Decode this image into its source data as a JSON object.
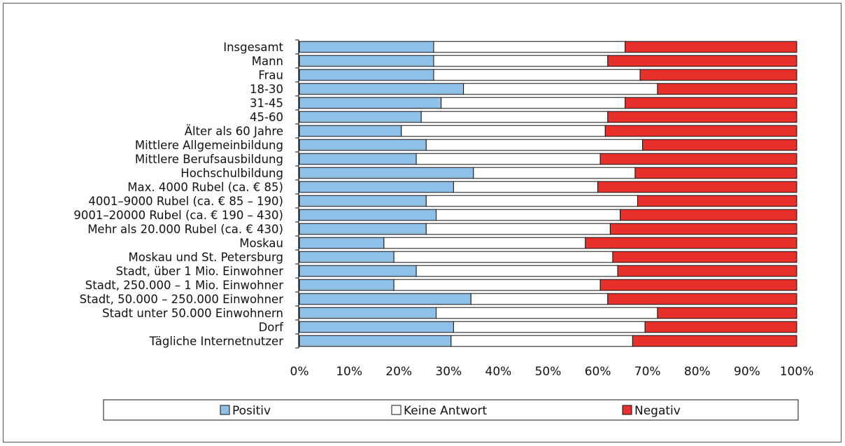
{
  "chart_data": {
    "type": "bar",
    "orientation": "horizontal",
    "stacked": "percent",
    "categories": [
      "Insgesamt",
      "Mann",
      "Frau",
      "18-30",
      "31-45",
      "45-60",
      "Älter als 60 Jahre",
      "Mittlere Allgemeinbildung",
      "Mittlere Berufsausbildung",
      "Hochschulbildung",
      "Max. 4000 Rubel (ca. € 85)",
      "4001–9000 Rubel (ca. € 85 – 190)",
      "9001–20000 Rubel (ca. € 190 – 430)",
      "Mehr als 20.000 Rubel (ca. € 430)",
      "Moskau",
      "Moskau und St. Petersburg",
      "Stadt, über 1 Mio. Einwohner",
      "Stadt, 250.000 – 1 Mio. Einwohner",
      "Stadt, 50.000 – 250.000 Einwohner",
      "Stadt unter 50.000 Einwohnern",
      "Dorf",
      "Tägliche Internetnutzer"
    ],
    "series": [
      {
        "name": "Positiv",
        "color": "#8fc0e8",
        "values": [
          27,
          27,
          27,
          33,
          28.5,
          24.5,
          20.5,
          25.5,
          23.5,
          35,
          31,
          25.5,
          27.5,
          25.5,
          17,
          19,
          23.5,
          19,
          34.5,
          27.5,
          31,
          30.5
        ]
      },
      {
        "name": "Keine Antwort",
        "color": "#ffffff",
        "values": [
          38.5,
          35,
          41.5,
          39,
          37,
          37.5,
          41,
          43.5,
          37,
          32.5,
          29,
          42.5,
          37,
          37,
          40.5,
          44,
          40.5,
          41.5,
          27.5,
          44.5,
          38.5,
          36.5
        ]
      },
      {
        "name": "Negativ",
        "color": "#e8302d",
        "values": [
          34.5,
          38,
          31.5,
          28,
          34.5,
          38,
          38.5,
          31,
          39.5,
          32.5,
          40,
          32,
          35.5,
          37.5,
          42.5,
          37,
          36,
          39.5,
          38,
          28,
          30.5,
          33
        ]
      }
    ],
    "xlim": [
      0,
      100
    ],
    "xticks": [
      "0%",
      "10%",
      "20%",
      "30%",
      "40%",
      "50%",
      "60%",
      "70%",
      "80%",
      "90%",
      "100%"
    ],
    "legend": "bottom",
    "grid": false
  }
}
